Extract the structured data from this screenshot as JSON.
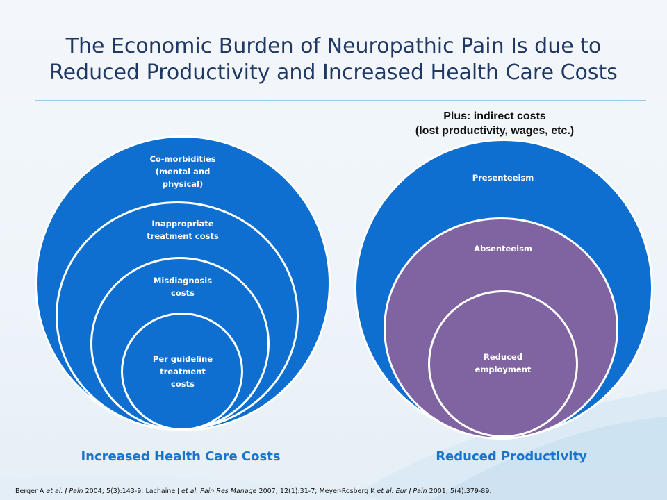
{
  "title": {
    "line1": "The Economic Burden of Neuropathic Pain Is due to",
    "line2": "Reduced Productivity and Increased Health Care Costs"
  },
  "note": {
    "line1": "Plus: indirect costs",
    "line2": "(lost productivity, wages, etc.)"
  },
  "left_diagram": {
    "caption": "Increased Health Care Costs",
    "rings": [
      {
        "line1": "Co-morbidities",
        "line2": "(mental and",
        "line3": "physical)"
      },
      {
        "line1": "Inappropriate",
        "line2": "treatment costs"
      },
      {
        "line1": "Misdiagnosis",
        "line2": "costs"
      },
      {
        "line1": "Per guideline",
        "line2": "treatment",
        "line3": "costs"
      }
    ],
    "color": "#0f6fd0"
  },
  "right_diagram": {
    "caption": "Reduced Productivity",
    "rings": [
      {
        "line1": "Presenteeism"
      },
      {
        "line1": "Absenteeism"
      },
      {
        "line1": "Reduced",
        "line2": "employment"
      }
    ],
    "colors": [
      "#0f6fd0",
      "#8063a1",
      "#8063a1"
    ]
  },
  "citation": {
    "p1": "Berger A ",
    "p2": "et al. J Pain",
    "p3": " 2004; 5(3):143-9; Lachaine J ",
    "p4": "et al. Pain Res Manage",
    "p5": " 2007; 12(1):31-7; Meyer-Rosberg K ",
    "p6": "et al. Eur J Pain",
    "p7": " 2001; 5(4):379-89."
  }
}
